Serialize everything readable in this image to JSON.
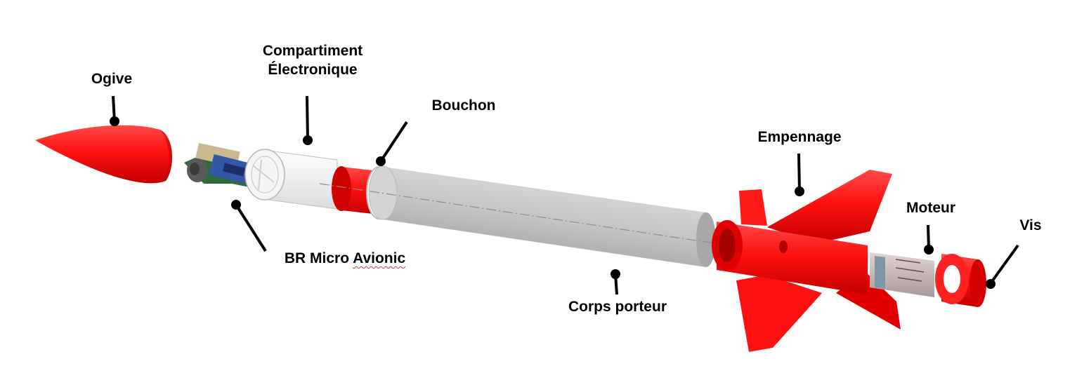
{
  "labels": {
    "ogive": "Ogive",
    "compartiment_line1": "Compartiment",
    "compartiment_line2": "Électronique",
    "bouchon": "Bouchon",
    "avionic_prefix": "BR Micro ",
    "avionic_suffix": "Avionic",
    "corps": "Corps porteur",
    "empennage": "Empennage",
    "moteur": "Moteur",
    "vis": "Vis"
  },
  "colors": {
    "red": "#ff1a1a",
    "dark_red": "#b80000",
    "grey_tube": "#c8c8c8",
    "white_part": "#f2f2f2",
    "leader": "#000000"
  }
}
